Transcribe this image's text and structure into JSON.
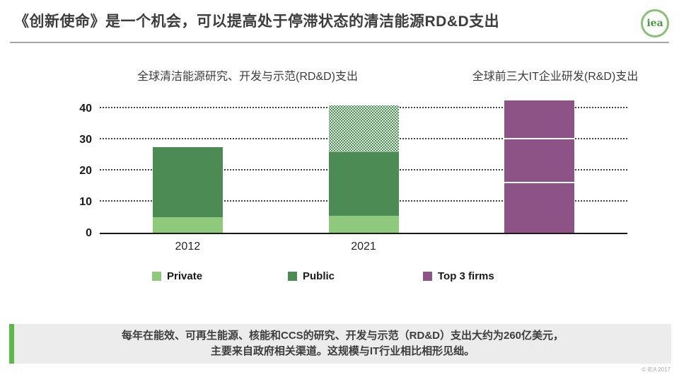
{
  "header": {
    "title": "《创新使命》是一个机会，可以提高处于停滞状态的清洁能源RD&D支出",
    "logo_text": "iea"
  },
  "charts": {
    "left_title": "全球清洁能源研究、开发与示范(RD&D)支出",
    "right_title": "全球前三大IT企业研发(R&D)支出"
  },
  "chart_data": {
    "type": "bar",
    "stacked": true,
    "grid": "horizontal-dotted",
    "legend_position": "bottom",
    "yticks": [
      0,
      10,
      20,
      30,
      40
    ],
    "ylim": [
      0,
      42.5
    ],
    "categories": [
      "2012",
      "2021",
      "Top 3 firms"
    ],
    "bars": [
      {
        "x_label": "2012",
        "segments": [
          {
            "series": "Private",
            "value": 5,
            "color": "#8fc97c"
          },
          {
            "series": "Public",
            "value": 22.5,
            "color": "#4d8b55"
          }
        ]
      },
      {
        "x_label": "2021",
        "segments": [
          {
            "series": "Private",
            "value": 5.5,
            "color": "#8fc97c"
          },
          {
            "series": "Public",
            "value": 20.5,
            "color": "#4d8b55"
          },
          {
            "series": "Public (hatched top portion)",
            "value": 15,
            "color": "#4d8b55",
            "pattern": "dotted"
          }
        ]
      },
      {
        "x_label": "",
        "white_dividers": true,
        "segments": [
          {
            "series": "Top 3 firms - segment 1",
            "value": 16,
            "color": "#8d5386"
          },
          {
            "series": "Top 3 firms - segment 2",
            "value": 14,
            "color": "#8d5386"
          },
          {
            "series": "Top 3 firms - segment 3",
            "value": 12.5,
            "color": "#8d5386"
          }
        ]
      }
    ]
  },
  "legend": {
    "items": [
      {
        "label": "Private",
        "color": "#8fc97c"
      },
      {
        "label": "Public",
        "color": "#4d8b55"
      },
      {
        "label": "Top 3 firms",
        "color": "#8d5386"
      }
    ]
  },
  "footer": {
    "callout_line1": "每年在能效、可再生能源、核能和CCS的研究、开发与示范（RD&D）支出大约为260亿美元，",
    "callout_line2": "主要来自政府相关渠道。这规模与IT行业相比相形见绌。",
    "copyright": "© IEA 2017"
  },
  "colors": {
    "accent_green": "#5cb848",
    "callout_bg": "#ececec",
    "title_text": "#3d3d3d",
    "axis_line": "#1a1a1a",
    "header_rule": "#a6a6a6",
    "logo_green": "#4d9444"
  }
}
